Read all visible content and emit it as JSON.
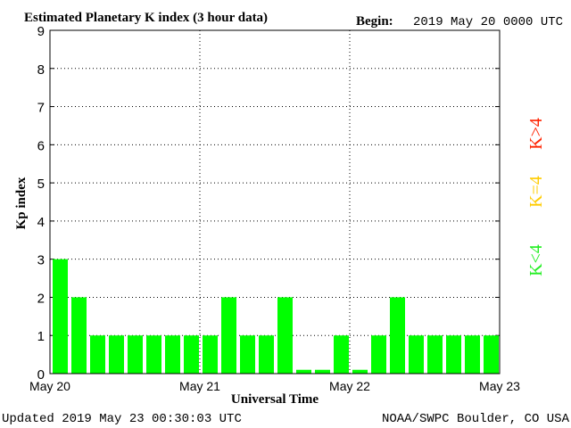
{
  "header": {
    "title": "Estimated Planetary K index (3 hour data)",
    "begin_label": "Begin:",
    "begin_value": "2019 May 20 0000 UTC"
  },
  "footer": {
    "updated": "Updated 2019 May 23 00:30:03 UTC",
    "credit": "NOAA/SWPC Boulder, CO USA"
  },
  "colors": {
    "bar": "#00ff00",
    "grid": "#000000",
    "legend_high": "#ff2200",
    "legend_equal": "#ffcc00",
    "legend_low": "#22ee22"
  },
  "legend": {
    "high": "K>4",
    "equal": "K=4",
    "low": "K<4"
  },
  "chart_data": {
    "type": "bar",
    "title": "Estimated Planetary K index (3 hour data)",
    "xlabel": "Universal Time",
    "ylabel": "Kp index",
    "ylim": [
      0,
      9
    ],
    "yticks": [
      "0",
      "1",
      "2",
      "3",
      "4",
      "5",
      "6",
      "7",
      "8",
      "9"
    ],
    "xticks": [
      "May 20",
      "May 21",
      "May 22",
      "May 23"
    ],
    "grid": true,
    "values": [
      3,
      2,
      1,
      1,
      1,
      1,
      1,
      1,
      1,
      2,
      1,
      1,
      2,
      0.1,
      0.1,
      1,
      0.1,
      1,
      2,
      1,
      1,
      1,
      1,
      1
    ]
  }
}
